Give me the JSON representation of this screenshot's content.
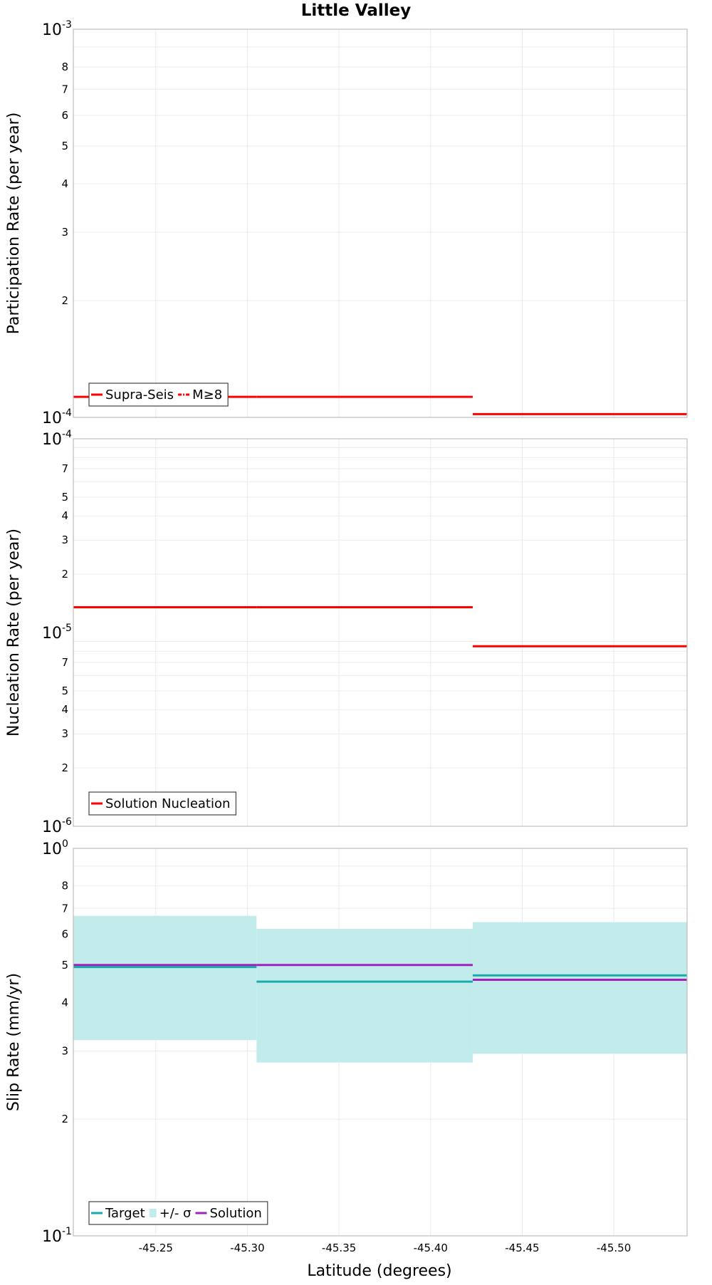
{
  "chart_data": {
    "type": "line",
    "title": "Little Valley",
    "xlabel": "Latitude (degrees)",
    "xlim": [
      -45.205,
      -45.54
    ],
    "x_ticks": [
      "-45.25",
      "-45.30",
      "-45.35",
      "-45.40",
      "-45.45",
      "-45.50"
    ],
    "x_tick_values": [
      -45.25,
      -45.3,
      -45.35,
      -45.4,
      -45.45,
      -45.5
    ],
    "segments": [
      {
        "x_start": -45.205,
        "x_end": -45.305
      },
      {
        "x_start": -45.305,
        "x_end": -45.423
      },
      {
        "x_start": -45.423,
        "x_end": -45.54
      }
    ],
    "panels": [
      {
        "id": "participation",
        "ylabel": "Participation Rate (per year)",
        "scale": "log",
        "ylim": [
          0.0001,
          0.001
        ],
        "major_ticks": [
          {
            "base": "10",
            "exp": "-4"
          },
          {
            "base": "10",
            "exp": "-3"
          }
        ],
        "minor_ticks": [
          "2",
          "3",
          "4",
          "5",
          "6",
          "7",
          "8"
        ],
        "legend": [
          {
            "label": "Supra-Seis",
            "color": "#ff0000",
            "style": "solid"
          },
          {
            "label": "M≥8",
            "color": "#ff0000",
            "style": "dashdot"
          }
        ],
        "series": [
          {
            "name": "Supra-Seis",
            "color": "#ff0000",
            "values": [
              0.000113,
              0.000113,
              0.000102
            ]
          }
        ]
      },
      {
        "id": "nucleation",
        "ylabel": "Nucleation Rate (per year)",
        "scale": "log",
        "ylim": [
          1e-06,
          0.0001
        ],
        "major_ticks": [
          {
            "base": "10",
            "exp": "-6"
          },
          {
            "base": "10",
            "exp": "-5"
          },
          {
            "base": "10",
            "exp": "-4"
          }
        ],
        "minor_ticks": [
          "2",
          "3",
          "4",
          "5",
          "7",
          "2",
          "3",
          "4",
          "5",
          "7"
        ],
        "legend": [
          {
            "label": "Solution Nucleation",
            "color": "#ff0000",
            "style": "solid"
          }
        ],
        "series": [
          {
            "name": "Solution Nucleation",
            "color": "#ff0000",
            "values": [
              1.35e-05,
              1.35e-05,
              8.5e-06
            ]
          }
        ]
      },
      {
        "id": "slip",
        "ylabel": "Slip Rate (mm/yr)",
        "scale": "log",
        "ylim": [
          0.1,
          1
        ],
        "major_ticks": [
          {
            "base": "10",
            "exp": "-1"
          },
          {
            "base": "10",
            "exp": "0"
          }
        ],
        "minor_ticks": [
          "2",
          "3",
          "4",
          "5",
          "6",
          "7",
          "8"
        ],
        "legend": [
          {
            "label": "Target",
            "color": "#1aacac",
            "style": "solid"
          },
          {
            "label": "+/- σ",
            "color": "#c2ecec",
            "style": "band"
          },
          {
            "label": "Solution",
            "color": "#a020c0",
            "style": "solid"
          }
        ],
        "bands": [
          {
            "name": "+/- σ",
            "color": "#c2ecec",
            "lower": [
              0.32,
              0.28,
              0.295
            ],
            "upper": [
              0.67,
              0.62,
              0.645
            ]
          }
        ],
        "series": [
          {
            "name": "Target",
            "color": "#1aacac",
            "values": [
              0.494,
              0.453,
              0.47
            ]
          },
          {
            "name": "Solution",
            "color": "#a020c0",
            "values": [
              0.5,
              0.5,
              0.458
            ]
          }
        ]
      }
    ]
  }
}
